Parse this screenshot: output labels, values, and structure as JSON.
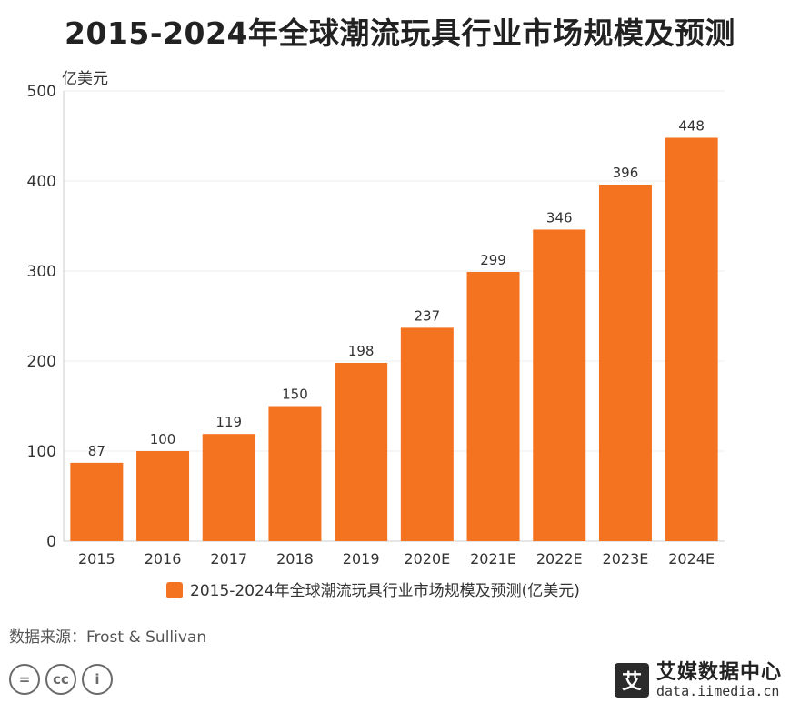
{
  "title": "2015-2024年全球潮流玩具行业市场规模及预测",
  "source": "数据来源：Frost & Sullivan",
  "brand": {
    "name": "艾媒数据中心",
    "url": "data.iimedia.cn",
    "mark": "艾"
  },
  "license_icons": [
    {
      "icon": "equals-icon",
      "glyph": "="
    },
    {
      "icon": "cc-icon",
      "glyph": "cc"
    },
    {
      "icon": "person-icon",
      "glyph": "i"
    }
  ],
  "colors": {
    "bar": "#f47320",
    "grid": "#ececec",
    "axis": "#cccccc",
    "label": "#333333"
  },
  "chart_data": {
    "type": "bar",
    "title": "2015-2024年全球潮流玩具行业市场规模及预测",
    "ylabel": "亿美元",
    "ylim": [
      0,
      500
    ],
    "yticks": [
      0,
      100,
      200,
      300,
      400,
      500
    ],
    "grid": true,
    "legend_position": "bottom",
    "categories": [
      "2015",
      "2016",
      "2017",
      "2018",
      "2019",
      "2020E",
      "2021E",
      "2022E",
      "2023E",
      "2024E"
    ],
    "series": [
      {
        "name": "2015-2024年全球潮流玩具行业市场规模及预测(亿美元)",
        "values": [
          87,
          100,
          119,
          150,
          198,
          237,
          299,
          346,
          396,
          448
        ]
      }
    ]
  }
}
